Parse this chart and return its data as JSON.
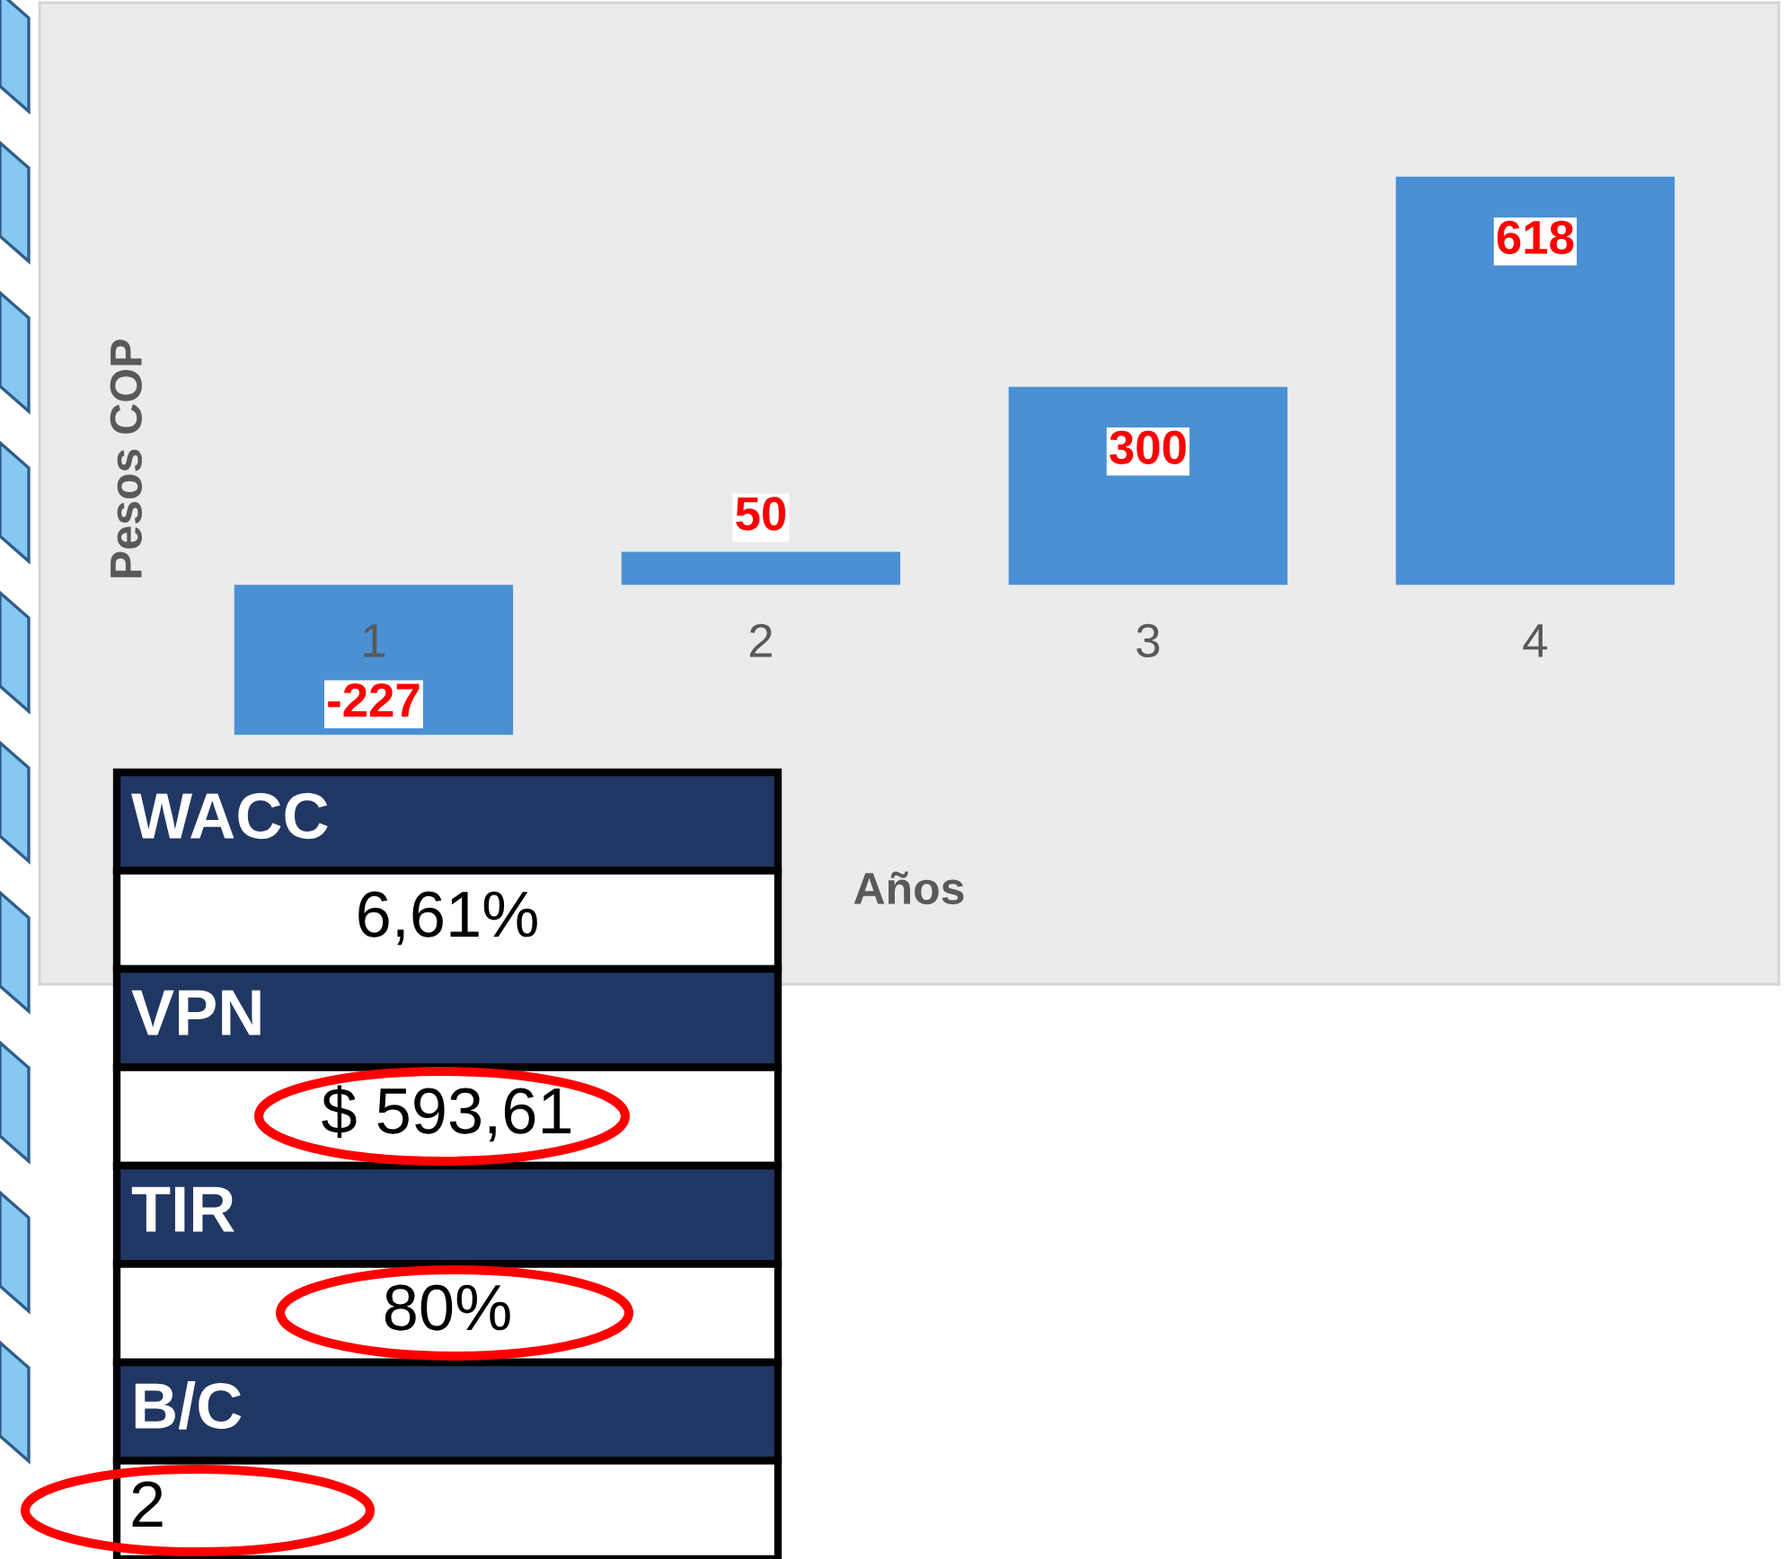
{
  "chart_data": {
    "type": "bar",
    "categories": [
      "1",
      "2",
      "3",
      "4"
    ],
    "values": [
      -227,
      50,
      300,
      618
    ],
    "color": "#4a90d4",
    "xlabel": "Años",
    "ylabel": "Pesos COP",
    "data_labels": true,
    "annotations": [
      "WACC",
      "6,61%",
      "VPN",
      "$ 593,61",
      "TIR",
      "80%",
      "B/C",
      "2"
    ]
  }
}
